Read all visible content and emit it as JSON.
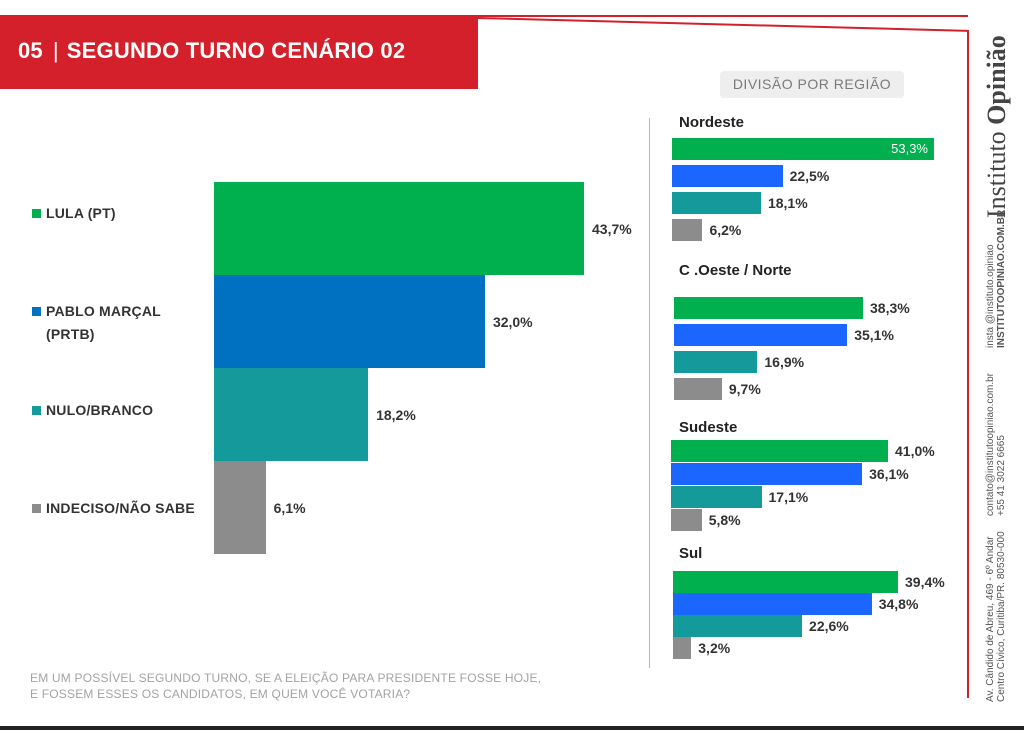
{
  "header": {
    "number": "05",
    "title": "SEGUNDO TURNO CENÁRIO 02"
  },
  "region_heading": "DIVISÃO POR REGIÃO",
  "question": "EM UM POSSÍVEL SEGUNDO TURNO, SE A ELEIÇÃO PARA PRESIDENTE FOSSE HOJE,\nE FOSSEM ESSES OS CANDIDATOS, EM QUEM VOCÊ VOTARIA?",
  "sidebar": {
    "brand_regular": "Instituto ",
    "brand_bold": "Opinião",
    "social": "insta @instituto.opiniao",
    "site": "INSTITUTOOPINIAO.COM.BR",
    "email": "contato@institutoopiniao.com.br",
    "phone": "+55 41 3022 6665",
    "address1": "Av. Cândido de Abreu, 469 - 6º Andar",
    "address2": "Centro Cívico, Curitiba/PR. 80530-000"
  },
  "colors": {
    "brand_red": "#d3202a",
    "lula": "#00b04f",
    "pablo_main": "#0070c0",
    "pablo_region": "#1a66ff",
    "nulo": "#159a9c",
    "indeciso": "#8c8c8c"
  },
  "chart_data": [
    {
      "type": "bar",
      "orientation": "horizontal",
      "categories": [
        "LULA (PT)",
        "PABLO MARÇAL\n(PRTB)",
        "NULO/BRANCO",
        "INDECISO/NÃO SABE"
      ],
      "values": [
        43.7,
        32.0,
        18.2,
        6.1
      ],
      "value_labels": [
        "43,7%",
        "32,0%",
        "18,2%",
        "6,1%"
      ]
    },
    {
      "type": "bar",
      "orientation": "horizontal",
      "title": "Nordeste",
      "categories": [
        "LULA (PT)",
        "PABLO MARÇAL\n(PRTB)",
        "NULO/BRANCO",
        "INDECISO/NÃO SABE"
      ],
      "values": [
        53.3,
        22.5,
        18.1,
        6.2
      ],
      "value_labels": [
        "53,3%",
        "22,5%",
        "18,1%",
        "6,2%"
      ]
    },
    {
      "type": "bar",
      "orientation": "horizontal",
      "title": "C .Oeste / Norte",
      "categories": [
        "LULA (PT)",
        "PABLO MARÇAL\n(PRTB)",
        "NULO/BRANCO",
        "INDECISO/NÃO SABE"
      ],
      "values": [
        38.3,
        35.1,
        16.9,
        9.7
      ],
      "value_labels": [
        "38,3%",
        "35,1%",
        "16,9%",
        "9,7%"
      ]
    },
    {
      "type": "bar",
      "orientation": "horizontal",
      "title": "Sudeste",
      "categories": [
        "LULA (PT)",
        "PABLO MARÇAL\n(PRTB)",
        "NULO/BRANCO",
        "INDECISO/NÃO SABE"
      ],
      "values": [
        41.0,
        36.1,
        17.1,
        5.8
      ],
      "value_labels": [
        "41,0%",
        "36,1%",
        "17,1%",
        "5,8%"
      ]
    },
    {
      "type": "bar",
      "orientation": "horizontal",
      "title": "Sul",
      "categories": [
        "LULA (PT)",
        "PABLO MARÇAL\n(PRTB)",
        "NULO/BRANCO",
        "INDECISO/NÃO SABE"
      ],
      "values": [
        39.4,
        34.8,
        22.6,
        3.2
      ],
      "value_labels": [
        "39,4%",
        "34,8%",
        "22,6%",
        "3,2%"
      ]
    }
  ]
}
